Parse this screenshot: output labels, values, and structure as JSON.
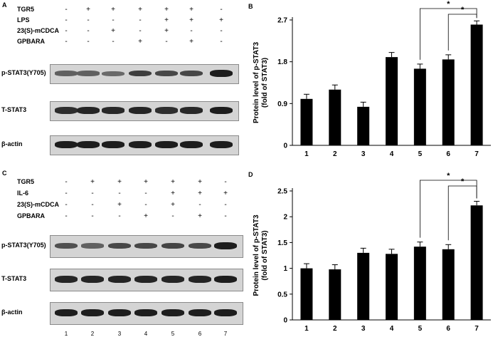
{
  "panels": {
    "A": {
      "letter": "A",
      "treatments": [
        {
          "label": "TGR5",
          "signs": [
            "-",
            "+",
            "+",
            "+",
            "+",
            "+",
            "-"
          ]
        },
        {
          "label": "LPS",
          "signs": [
            "-",
            "-",
            "-",
            "-",
            "+",
            "+",
            "+"
          ]
        },
        {
          "label": "23(S)-mCDCA",
          "signs": [
            "-",
            "-",
            "+",
            "-",
            "+",
            "-",
            "-"
          ]
        },
        {
          "label": "GPBARA",
          "signs": [
            "-",
            "-",
            "-",
            "+",
            "-",
            "+",
            "-"
          ]
        }
      ],
      "blots": [
        {
          "label": "p-STAT3(Y705)",
          "intensity": [
            0.55,
            0.55,
            0.5,
            0.75,
            0.7,
            0.7,
            0.95
          ]
        },
        {
          "label": "T-STAT3",
          "intensity": [
            0.85,
            0.9,
            0.88,
            0.9,
            0.85,
            0.88,
            0.95
          ]
        },
        {
          "label": "β-actin",
          "intensity": [
            0.95,
            0.95,
            0.95,
            0.95,
            0.95,
            0.95,
            0.95
          ]
        }
      ]
    },
    "C": {
      "letter": "C",
      "treatments": [
        {
          "label": "TGR5",
          "signs": [
            "-",
            "+",
            "+",
            "+",
            "+",
            "+",
            "-"
          ]
        },
        {
          "label": "IL-6",
          "signs": [
            "-",
            "-",
            "-",
            "-",
            "+",
            "+",
            "+"
          ]
        },
        {
          "label": "23(S)-mCDCA",
          "signs": [
            "-",
            "-",
            "+",
            "-",
            "+",
            "-",
            "-"
          ]
        },
        {
          "label": "GPBARA",
          "signs": [
            "-",
            "-",
            "-",
            "+",
            "-",
            "+",
            "-"
          ]
        }
      ],
      "blots": [
        {
          "label": "p-STAT3(Y705)",
          "intensity": [
            0.65,
            0.55,
            0.7,
            0.7,
            0.72,
            0.7,
            0.95
          ]
        },
        {
          "label": "T-STAT3",
          "intensity": [
            0.9,
            0.9,
            0.9,
            0.9,
            0.9,
            0.9,
            0.95
          ]
        },
        {
          "label": "β-actin",
          "intensity": [
            0.95,
            0.95,
            0.95,
            0.95,
            0.95,
            0.95,
            0.95
          ]
        }
      ],
      "lane_numbers": [
        "1",
        "2",
        "3",
        "4",
        "5",
        "6",
        "7"
      ]
    }
  },
  "chart_data": [
    {
      "panel": "B",
      "type": "bar",
      "categories": [
        "1",
        "2",
        "3",
        "4",
        "5",
        "6",
        "7"
      ],
      "values": [
        1.0,
        1.2,
        0.83,
        1.9,
        1.65,
        1.85,
        2.6
      ],
      "errors": [
        0.1,
        0.1,
        0.1,
        0.1,
        0.1,
        0.1,
        0.08
      ],
      "ylabel": "Protein level of p-STAT3 (fold of STAT3)",
      "yticks": [
        "0",
        "0.9",
        "1.8",
        "2.7"
      ],
      "ylim": [
        0,
        2.7
      ],
      "significance": [
        {
          "from": "5",
          "to": "7",
          "label": "*"
        },
        {
          "from": "6",
          "to": "7",
          "label": "*"
        }
      ]
    },
    {
      "panel": "D",
      "type": "bar",
      "categories": [
        "1",
        "2",
        "3",
        "4",
        "5",
        "6",
        "7"
      ],
      "values": [
        1.0,
        0.98,
        1.3,
        1.28,
        1.42,
        1.37,
        2.22
      ],
      "errors": [
        0.09,
        0.09,
        0.09,
        0.09,
        0.09,
        0.09,
        0.08
      ],
      "ylabel": "Protein level of p-STAT3 (fold of STAT3)",
      "yticks": [
        "0",
        "0.5",
        "1",
        "1.5",
        "2",
        "2.5"
      ],
      "ylim": [
        0,
        2.5
      ],
      "significance": [
        {
          "from": "5",
          "to": "7",
          "label": "*"
        },
        {
          "from": "6",
          "to": "7",
          "label": "*"
        }
      ]
    }
  ]
}
